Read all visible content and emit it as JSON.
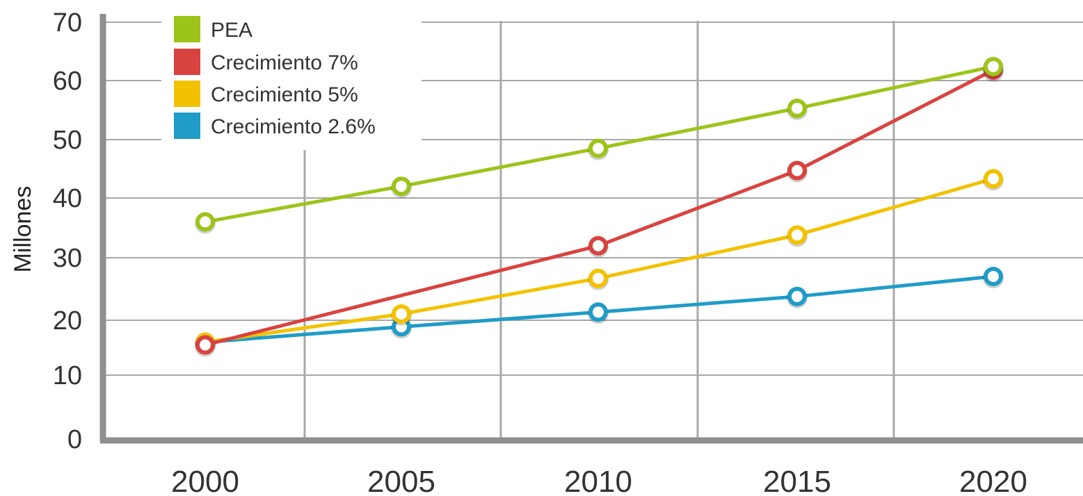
{
  "chart_data": {
    "type": "line",
    "title": "",
    "xlabel": "",
    "ylabel": "Millones",
    "x": [
      "2000",
      "2005",
      "2010",
      "2015",
      "2020"
    ],
    "ylim": [
      0,
      70
    ],
    "yticks": [
      "0",
      "10",
      "20",
      "30",
      "40",
      "50",
      "60",
      "70"
    ],
    "grid": true,
    "legend": "top-left",
    "series": [
      {
        "name": "PEA",
        "color": "#9dc41a",
        "values": [
          36,
          42,
          48.5,
          55.3,
          62.4
        ]
      },
      {
        "name": "Crecimiento 7%",
        "color": "#d9433f",
        "values": [
          15.5,
          null,
          32,
          44.7,
          61.8
        ]
      },
      {
        "name": "Crecimiento 5%",
        "color": "#f2c200",
        "values": [
          16,
          21,
          26.7,
          33.8,
          43.3
        ]
      },
      {
        "name": "Crecimiento 2.6%",
        "color": "#1f9cc7",
        "values": [
          16,
          18.8,
          21.3,
          23.8,
          27
        ]
      }
    ]
  }
}
